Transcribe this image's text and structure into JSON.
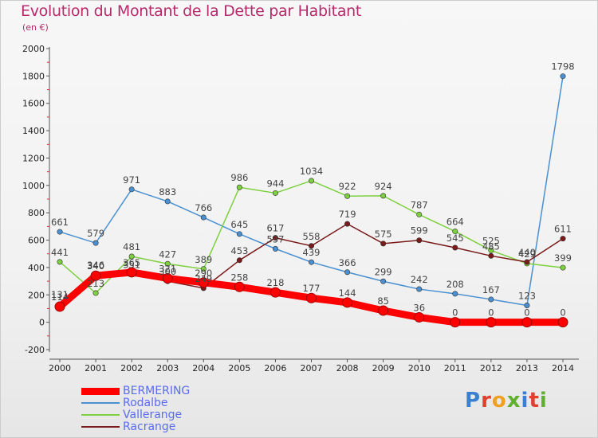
{
  "chart_data": {
    "type": "line",
    "title": "Evolution du Montant de la Dette par Habitant",
    "subtitle": "(en €)",
    "categories": [
      "2000",
      "2001",
      "2002",
      "2003",
      "2004",
      "2005",
      "2006",
      "2007",
      "2008",
      "2009",
      "2010",
      "2011",
      "2012",
      "2013",
      "2014"
    ],
    "ylim": [
      -200,
      2000
    ],
    "yticks": [
      -200,
      0,
      200,
      400,
      600,
      800,
      1000,
      1200,
      1400,
      1600,
      1800,
      2000
    ],
    "grid": false,
    "legend_position": "bottom-left",
    "series": [
      {
        "name": "BERMERING",
        "color": "#ff0000",
        "values": [
          114,
          340,
          365,
          321,
          290,
          258,
          218,
          177,
          144,
          85,
          36,
          0,
          0,
          0,
          0
        ]
      },
      {
        "name": "Rodalbe",
        "color": "#4a90d0",
        "values": [
          661,
          579,
          971,
          883,
          766,
          645,
          537,
          439,
          366,
          299,
          242,
          208,
          167,
          123,
          1798
        ]
      },
      {
        "name": "Vallerange",
        "color": "#7ed040",
        "values": [
          441,
          213,
          481,
          427,
          389,
          986,
          944,
          1034,
          922,
          924,
          787,
          664,
          525,
          429,
          399
        ]
      },
      {
        "name": "Racrange",
        "color": "#7a1a1a",
        "values": [
          131,
          346,
          351,
          300,
          249,
          453,
          617,
          558,
          719,
          575,
          599,
          545,
          485,
          440,
          611
        ]
      }
    ]
  },
  "logo": {
    "text": "Proxiti"
  }
}
